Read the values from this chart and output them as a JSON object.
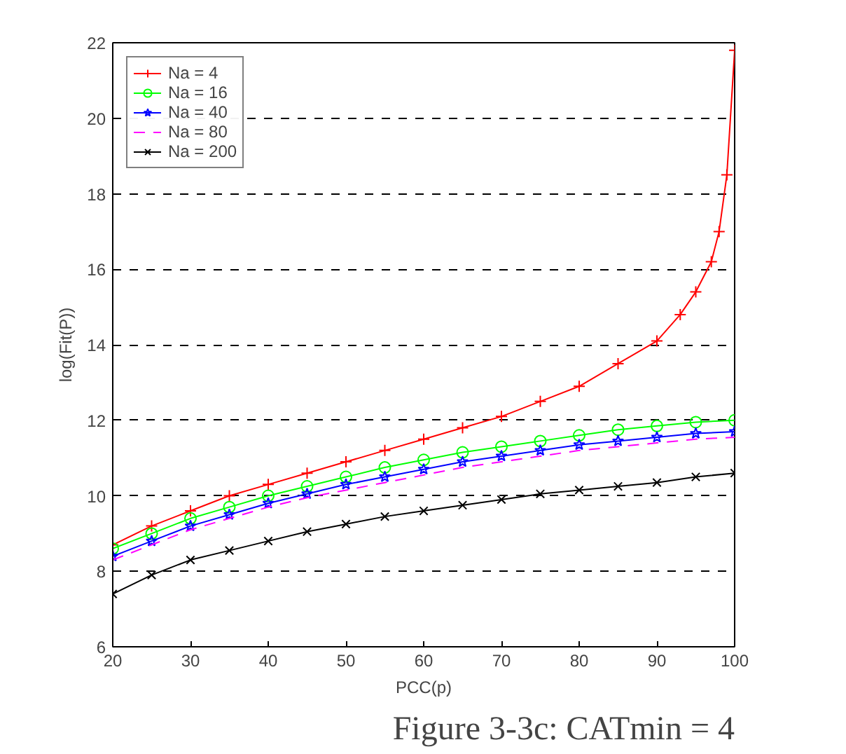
{
  "chart_data": {
    "type": "line",
    "xlabel": "PCC(p)",
    "ylabel": "log(Fit(P))",
    "xlim": [
      20,
      100
    ],
    "ylim": [
      6,
      22
    ],
    "xticks": [
      20,
      30,
      40,
      50,
      60,
      70,
      80,
      90,
      100
    ],
    "yticks": [
      6,
      8,
      10,
      12,
      14,
      16,
      18,
      20,
      22
    ],
    "grid": "y",
    "legend": "top left",
    "annotations": [
      "Figure 3-3c: CATmin = 4"
    ],
    "series": [
      {
        "name": "Na = 4",
        "color": "#ff0000",
        "marker": "cross",
        "x": [
          20,
          25,
          30,
          35,
          40,
          45,
          50,
          55,
          60,
          65,
          70,
          75,
          80,
          85,
          90,
          93,
          95,
          97,
          98,
          99,
          100
        ],
        "values": [
          8.7,
          9.2,
          9.6,
          10.0,
          10.3,
          10.6,
          10.9,
          11.2,
          11.5,
          11.8,
          12.1,
          12.5,
          12.9,
          13.5,
          14.1,
          14.8,
          15.4,
          16.2,
          17,
          18.5,
          21.8
        ]
      },
      {
        "name": "Na = 16",
        "color": "#00ff00",
        "marker": "circle",
        "x": [
          20,
          25,
          30,
          35,
          40,
          45,
          50,
          55,
          60,
          65,
          70,
          75,
          80,
          85,
          90,
          95,
          100
        ],
        "values": [
          8.6,
          9.0,
          9.4,
          9.7,
          10.0,
          10.25,
          10.5,
          10.75,
          10.95,
          11.15,
          11.3,
          11.45,
          11.6,
          11.75,
          11.85,
          11.95,
          12.0
        ]
      },
      {
        "name": "Na = 40",
        "color": "#0000ff",
        "marker": "star",
        "x": [
          20,
          25,
          30,
          35,
          40,
          45,
          50,
          55,
          60,
          65,
          70,
          75,
          80,
          85,
          90,
          95,
          100
        ],
        "values": [
          8.4,
          8.8,
          9.2,
          9.5,
          9.8,
          10.05,
          10.3,
          10.5,
          10.7,
          10.9,
          11.05,
          11.2,
          11.35,
          11.45,
          11.55,
          11.65,
          11.7
        ]
      },
      {
        "name": "Na = 80",
        "color": "#ff00ff",
        "line_style": "dashed",
        "x": [
          20,
          25,
          30,
          35,
          40,
          45,
          50,
          55,
          60,
          65,
          70,
          75,
          80,
          85,
          90,
          95,
          100
        ],
        "values": [
          8.3,
          8.7,
          9.1,
          9.4,
          9.7,
          9.95,
          10.15,
          10.35,
          10.55,
          10.75,
          10.9,
          11.05,
          11.2,
          11.3,
          11.4,
          11.5,
          11.55
        ]
      },
      {
        "name": "Na = 200",
        "color": "#000000",
        "marker": "x",
        "x": [
          20,
          25,
          30,
          35,
          40,
          45,
          50,
          55,
          60,
          65,
          70,
          75,
          80,
          85,
          90,
          95,
          100
        ],
        "values": [
          7.4,
          7.9,
          8.3,
          8.55,
          8.8,
          9.05,
          9.25,
          9.45,
          9.6,
          9.75,
          9.9,
          10.05,
          10.15,
          10.25,
          10.35,
          10.5,
          10.6
        ]
      }
    ]
  }
}
